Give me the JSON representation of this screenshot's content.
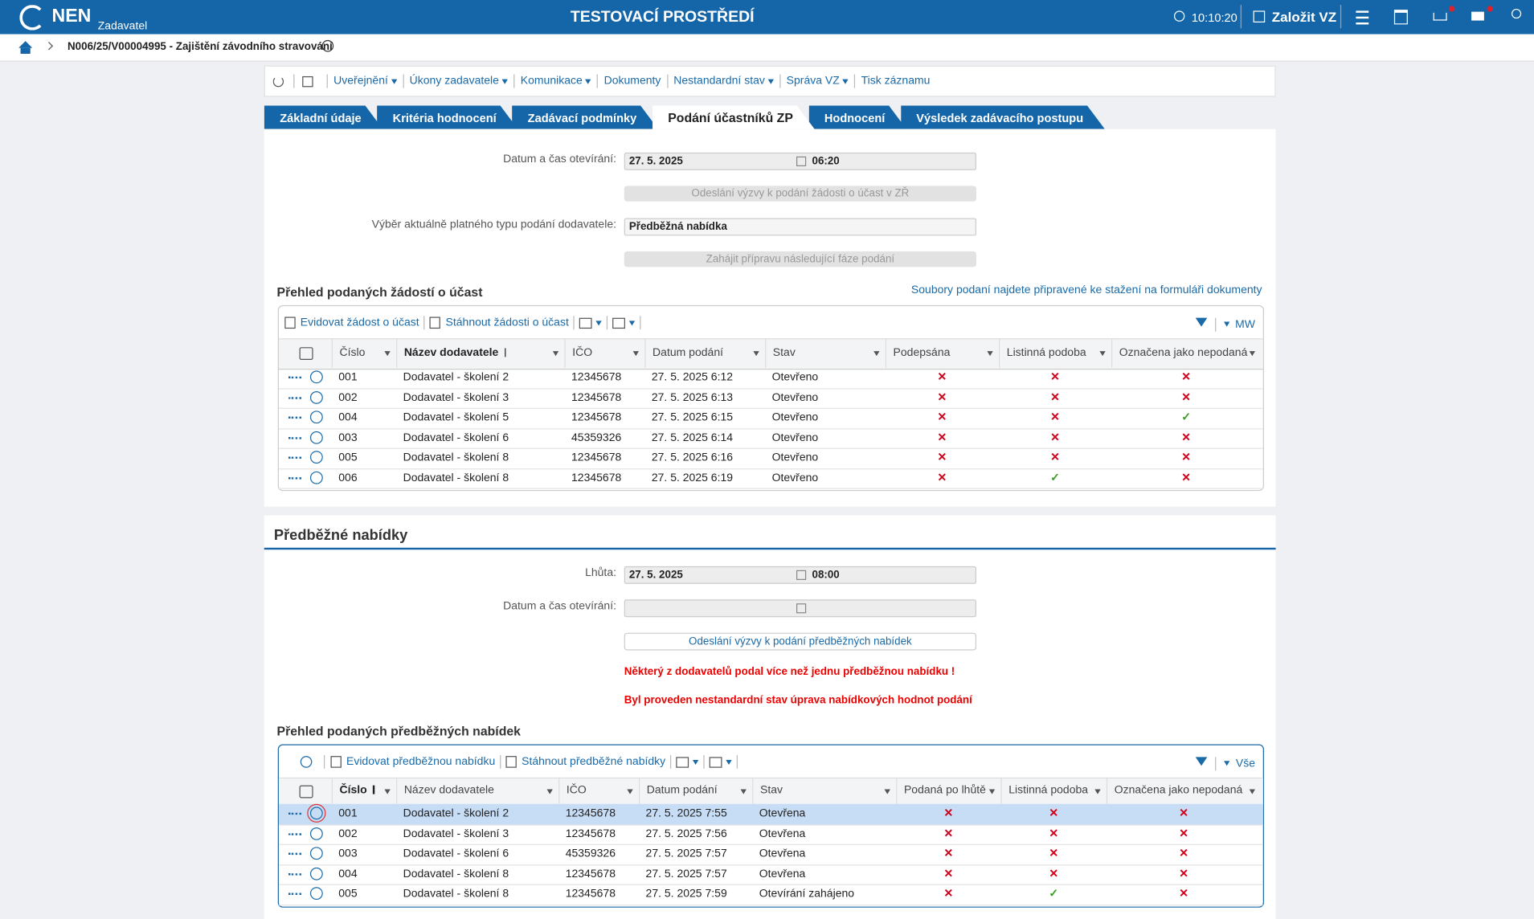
{
  "header": {
    "logo": "NEN",
    "role": "Zadavatel",
    "environment": "TESTOVACÍ PROSTŘEDÍ",
    "time": "10:10:20",
    "create_button": "Založit VZ"
  },
  "breadcrumb": {
    "title": "N006/25/V00004995 - Zajištění závodního stravování"
  },
  "toolbar": {
    "items": [
      "Uveřejnění",
      "Úkony zadavatele",
      "Komunikace",
      "Dokumenty",
      "Nestandardní stav",
      "Správa VZ",
      "Tisk záznamu"
    ]
  },
  "tabs": {
    "items": [
      "Základní údaje",
      "Kritéria hodnocení",
      "Zadávací podmínky",
      "Podání účastníků ZP",
      "Hodnocení",
      "Výsledek zadávacího postupu"
    ],
    "active": 3
  },
  "form1": {
    "opening_label": "Datum a čas otevírání:",
    "opening_date": "27. 5. 2025",
    "opening_time": "06:20",
    "invite_button": "Odeslání výzvy k podání žádosti o účast v ZŘ",
    "type_label": "Výběr aktuálně platného typu podání dodavatele:",
    "type_value": "Předběžná nabídka",
    "next_phase_button": "Zahájit přípravu následující fáze podání"
  },
  "table1": {
    "title": "Přehled podaných žádostí o účast",
    "link": "Soubory podaní najdete připravené ke stažení na formuláři dokumenty",
    "actions": [
      "Evidovat žádost o účast",
      "Stáhnout žádosti o účast"
    ],
    "view": "MW",
    "sorted_column": 1,
    "columns": [
      "Číslo",
      "Název dodavatele",
      "IČO",
      "Datum podání",
      "Stav",
      "Podepsána",
      "Listinná podoba",
      "Označena jako nepodaná"
    ],
    "rows": [
      [
        "001",
        "Dodavatel - školení 2",
        "12345678",
        "27. 5. 2025 6:12",
        "Otevřeno",
        "✕",
        "✕",
        "✕"
      ],
      [
        "002",
        "Dodavatel - školení 3",
        "12345678",
        "27. 5. 2025 6:13",
        "Otevřeno",
        "✕",
        "✕",
        "✕"
      ],
      [
        "004",
        "Dodavatel - školení 5",
        "12345678",
        "27. 5. 2025 6:15",
        "Otevřeno",
        "✕",
        "✕",
        "✓"
      ],
      [
        "003",
        "Dodavatel - školení 6",
        "45359326",
        "27. 5. 2025 6:14",
        "Otevřeno",
        "✕",
        "✕",
        "✕"
      ],
      [
        "005",
        "Dodavatel - školení 8",
        "12345678",
        "27. 5. 2025 6:16",
        "Otevřeno",
        "✕",
        "✕",
        "✕"
      ],
      [
        "006",
        "Dodavatel - školení 8",
        "12345678",
        "27. 5. 2025 6:19",
        "Otevřeno",
        "✕",
        "✓",
        "✕"
      ]
    ]
  },
  "section2": {
    "title": "Předběžné nabídky",
    "deadline_label": "Lhůta:",
    "deadline_date": "27. 5. 2025",
    "deadline_time": "08:00",
    "opening_label": "Datum a čas otevírání:",
    "invite_button": "Odeslání výzvy k podání předběžných nabídek",
    "warnings": [
      "Některý z dodavatelů podal více než jednu předběžnou nabídku !",
      "Byl proveden nestandardní stav úprava nabídkových hodnot podání"
    ]
  },
  "table2": {
    "title": "Přehled podaných předběžných nabídek",
    "actions": [
      "Evidovat předběžnou nabídku",
      "Stáhnout předběžné nabídky"
    ],
    "view": "Vše",
    "sorted_column": 0,
    "selected_row": 0,
    "columns": [
      "Číslo",
      "Název dodavatele",
      "IČO",
      "Datum podání",
      "Stav",
      "Podaná po lhůtě",
      "Listinná podoba",
      "Označena jako nepodaná"
    ],
    "rows": [
      [
        "001",
        "Dodavatel - školení 2",
        "12345678",
        "27. 5. 2025 7:55",
        "Otevřena",
        "✕",
        "✕",
        "✕"
      ],
      [
        "002",
        "Dodavatel - školení 3",
        "12345678",
        "27. 5. 2025 7:56",
        "Otevřena",
        "✕",
        "✕",
        "✕"
      ],
      [
        "003",
        "Dodavatel - školení 6",
        "45359326",
        "27. 5. 2025 7:57",
        "Otevřena",
        "✕",
        "✕",
        "✕"
      ],
      [
        "004",
        "Dodavatel - školení 8",
        "12345678",
        "27. 5. 2025 7:57",
        "Otevřena",
        "✕",
        "✕",
        "✕"
      ],
      [
        "005",
        "Dodavatel - školení 8",
        "12345678",
        "27. 5. 2025 7:59",
        "Otevírání zahájeno",
        "✕",
        "✓",
        "✕"
      ]
    ]
  }
}
